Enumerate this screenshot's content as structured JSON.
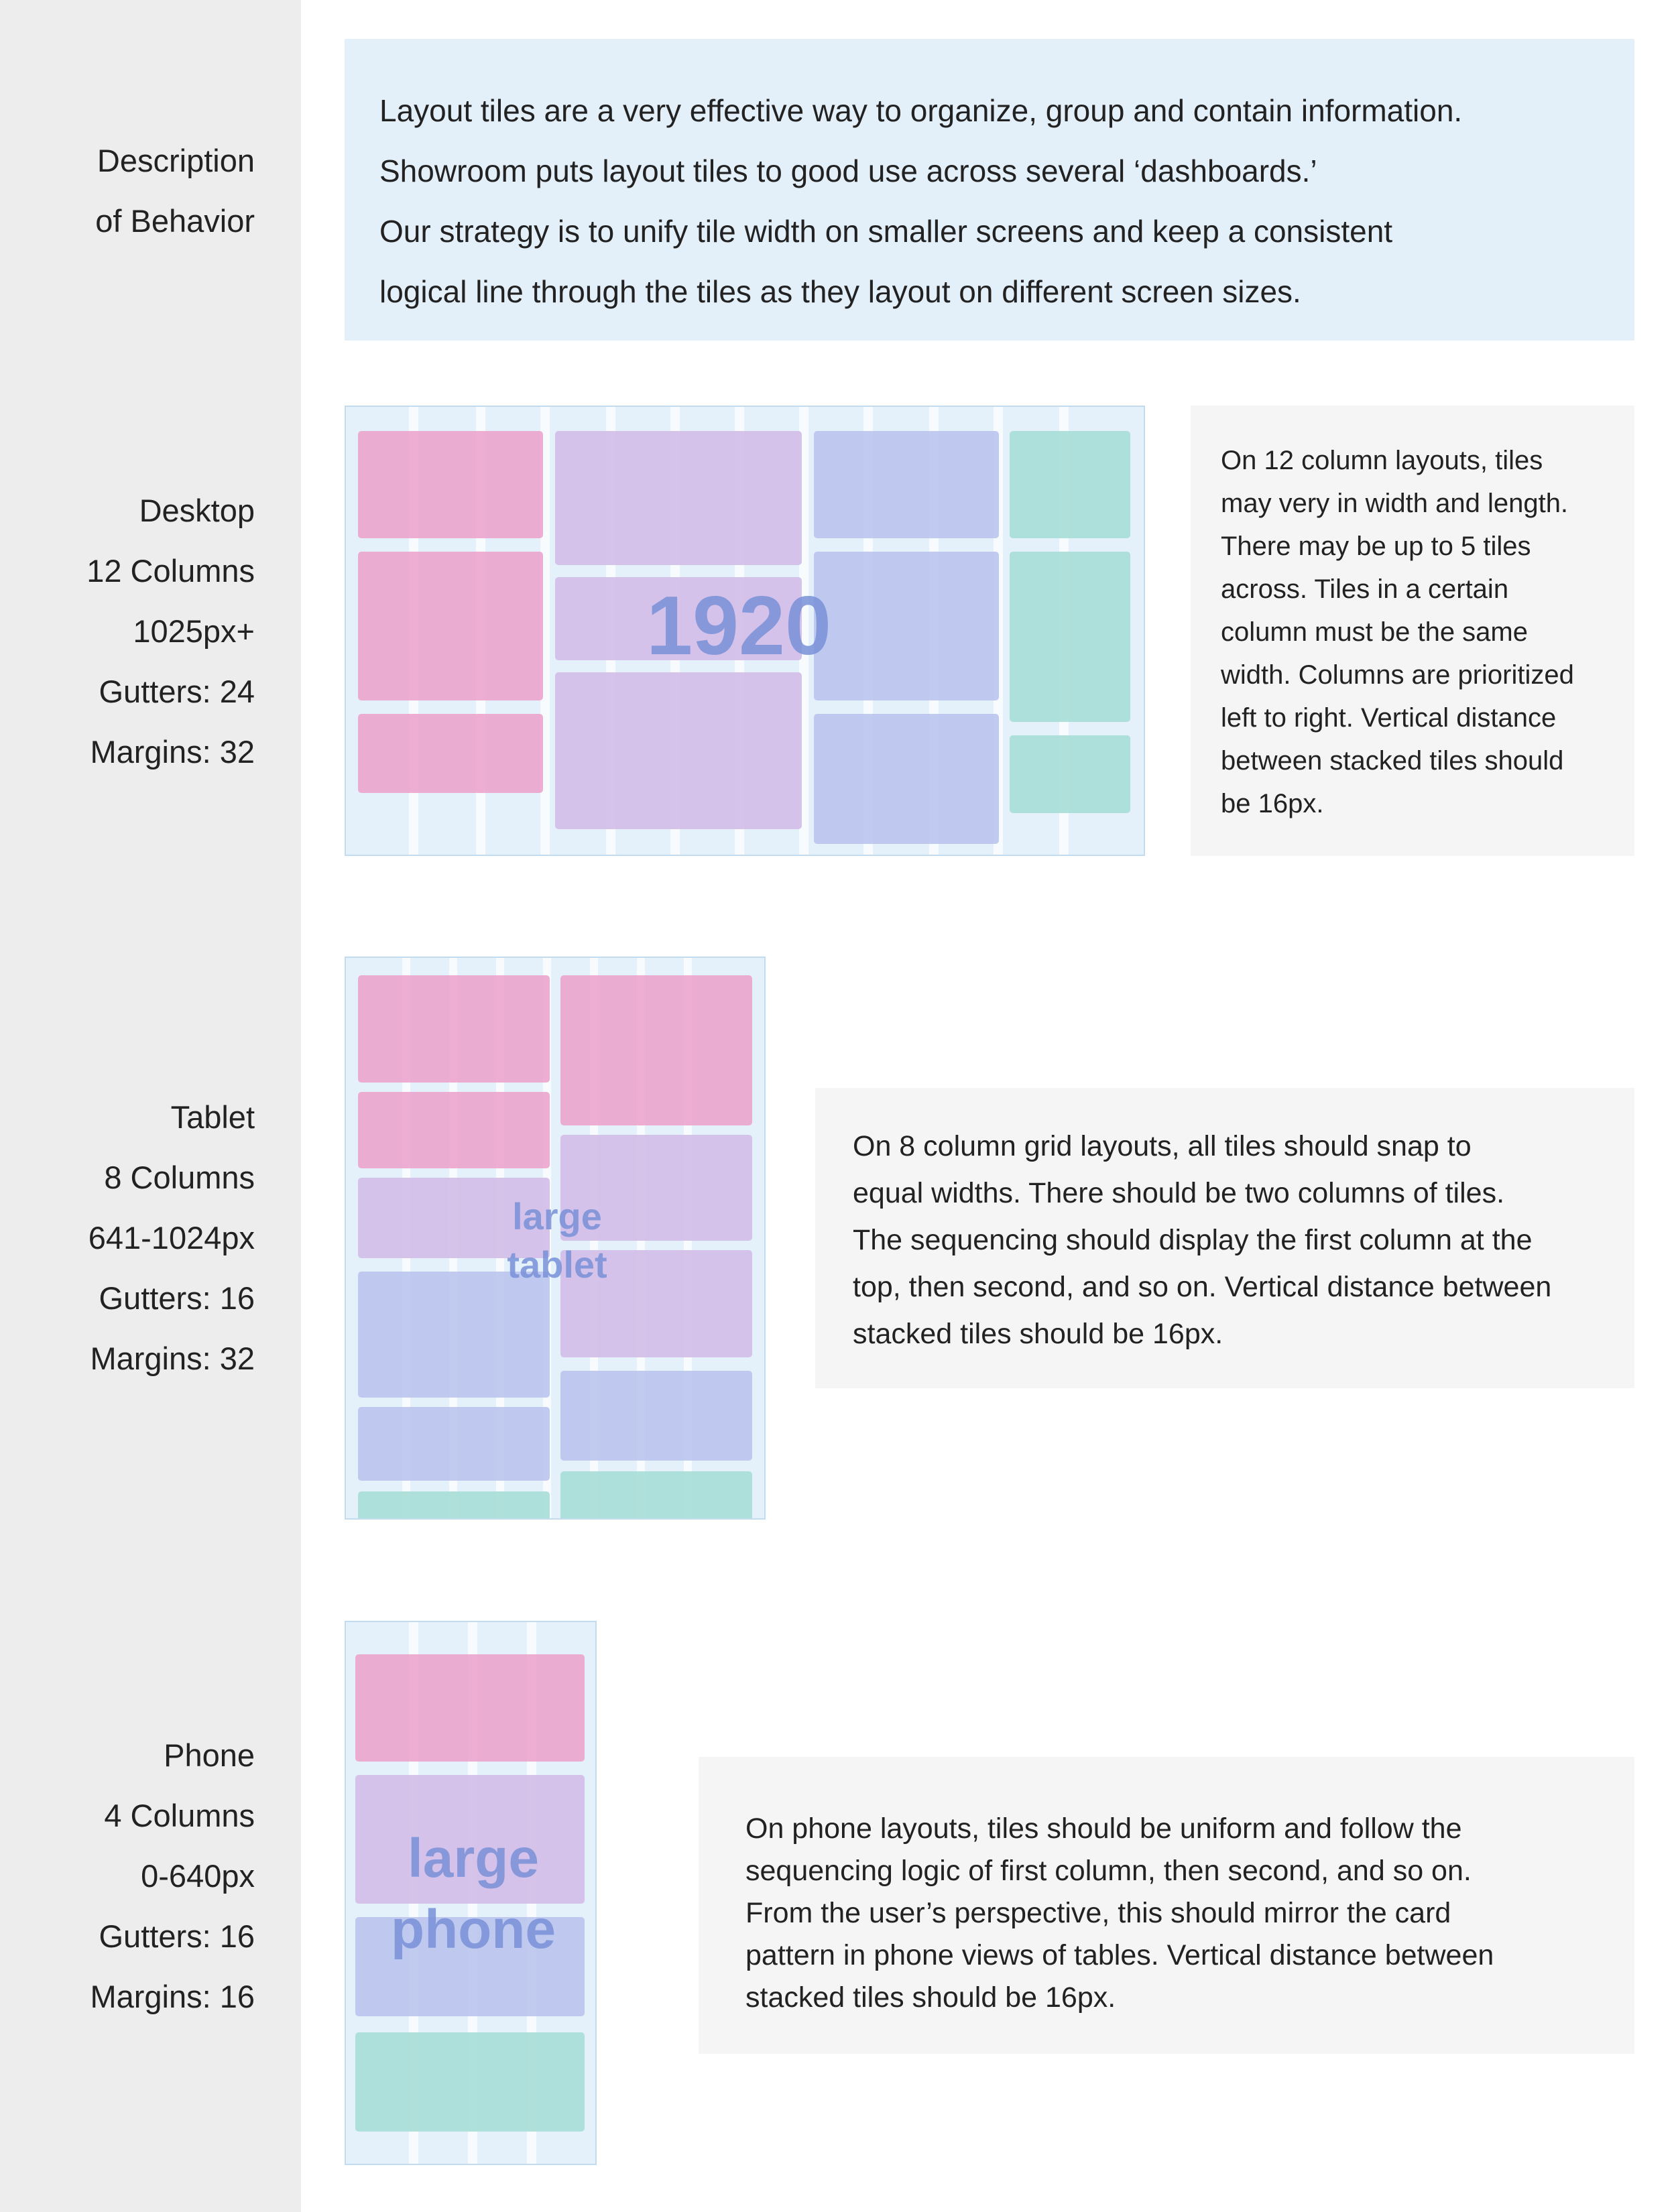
{
  "description": {
    "label": [
      "Description",
      "of Behavior"
    ],
    "text": [
      "Layout tiles are a very effective way to organize, group and contain information.",
      "Showroom puts layout tiles to good use across several ‘dashboards.’",
      "Our strategy is to unify tile width on smaller screens and keep a consistent",
      "logical line through the tiles as they layout on different screen sizes."
    ]
  },
  "desktop": {
    "label": [
      "Desktop",
      "12 Columns",
      "1025px+",
      "Gutters: 24",
      "Margins: 32"
    ],
    "preview_label": "1920",
    "note": [
      "On 12 column layouts, tiles",
      "may very in width and length.",
      "There may be up to 5 tiles",
      "across. Tiles in a certain",
      "column must be the same",
      "width. Columns are prioritized",
      "left to right. Vertical distance",
      "between stacked tiles should",
      "be 16px."
    ]
  },
  "tablet": {
    "label": [
      "Tablet",
      "8 Columns",
      "641-1024px",
      "Gutters: 16",
      "Margins: 32"
    ],
    "preview_label": [
      "large",
      "tablet"
    ],
    "note": [
      "On 8 column grid layouts, all tiles should snap to",
      "equal widths. There should be two columns of tiles.",
      "The sequencing should display the first column at the",
      "top, then second, and so on. Vertical distance between",
      "stacked tiles should be 16px."
    ]
  },
  "phone": {
    "label": [
      "Phone",
      "4 Columns",
      "0-640px",
      "Gutters: 16",
      "Margins: 16"
    ],
    "preview_label": [
      "large",
      "phone"
    ],
    "note": [
      "On phone layouts, tiles should be uniform and follow the",
      "sequencing logic of first column, then second, and so on.",
      "From the user’s perspective, this should mirror the card",
      "pattern in phone views of tables. Vertical distance between",
      "stacked tiles should be 16px."
    ]
  },
  "colors": {
    "sidebar": "#ededed",
    "intro_bg": "#e3eff9",
    "note_bg": "#f5f5f5",
    "tile_pink": "#eca2cc",
    "tile_purple": "#d2bee8",
    "tile_blue": "#bcc6ee",
    "tile_teal": "#a8ded7"
  }
}
